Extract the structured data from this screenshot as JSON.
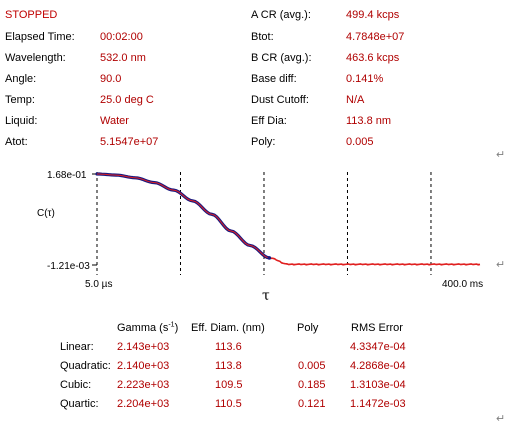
{
  "status": "STOPPED",
  "left_params": [
    {
      "label": "Elapsed Time:",
      "value": "00:02:00"
    },
    {
      "label": "Wavelength:",
      "value": "532.0 nm"
    },
    {
      "label": "Angle:",
      "value": "90.0"
    },
    {
      "label": "Temp:",
      "value": "25.0 deg C"
    },
    {
      "label": "Liquid:",
      "value": "Water"
    },
    {
      "label": "Atot:",
      "value": "5.1547e+07"
    }
  ],
  "right_params": [
    {
      "label": "A CR (avg.):",
      "value": "499.4 kcps"
    },
    {
      "label": "Btot:",
      "value": "4.7848e+07"
    },
    {
      "label": "B CR (avg.):",
      "value": "463.6 kcps"
    },
    {
      "label": "Base diff:",
      "value": "0.141%"
    },
    {
      "label": "Dust Cutoff:",
      "value": "N/A"
    },
    {
      "label": "Eff Dia:",
      "value": "113.8 nm"
    },
    {
      "label": "Poly:",
      "value": "0.005"
    }
  ],
  "paragraph_mark": "↵",
  "chart": {
    "ylabel": "C(τ)",
    "y_top_label": "1.68e-01",
    "y_bottom_label": "-1.21e-03",
    "x_left_label": "5.0 µs",
    "x_right_label": "400.0 ms",
    "xlabel": "τ",
    "colors": {
      "data": "#1a1a80",
      "fit": "#e02020",
      "axis": "#000000"
    }
  },
  "chart_data": {
    "type": "line",
    "title": "",
    "xlabel": "τ",
    "ylabel": "C(τ)",
    "xlim": [
      "5.0 µs",
      "400.0 ms"
    ],
    "ylim": [
      -0.00121,
      0.168
    ],
    "x_scale": "log",
    "grid": "vertical dashed lines",
    "series": [
      {
        "name": "",
        "x_frac": [
          0,
          0.05,
          0.1,
          0.15,
          0.2,
          0.25,
          0.3,
          0.35,
          0.4,
          0.45,
          0.5,
          0.6,
          0.7,
          0.8,
          0.9,
          1.0
        ],
        "values": [
          0.168,
          0.166,
          0.161,
          0.152,
          0.138,
          0.118,
          0.093,
          0.062,
          0.035,
          0.012,
          0.0,
          0.0,
          0.0,
          0.0,
          0.0,
          0.0
        ]
      }
    ]
  },
  "fits": {
    "headers": {
      "gamma": "Gamma (s",
      "gamma_sup": "-1",
      "gamma_end": ")",
      "diam": "Eff. Diam. (nm)",
      "poly": "Poly",
      "rms": "RMS Error"
    },
    "rows": [
      {
        "name": "Linear:",
        "gamma": "2.143e+03",
        "diam": "113.6",
        "poly": "",
        "rms": "4.3347e-04"
      },
      {
        "name": "Quadratic:",
        "gamma": "2.140e+03",
        "diam": "113.8",
        "poly": "0.005",
        "rms": "4.2868e-04"
      },
      {
        "name": "Cubic:",
        "gamma": "2.223e+03",
        "diam": "109.5",
        "poly": "0.185",
        "rms": "1.3103e-04"
      },
      {
        "name": "Quartic:",
        "gamma": "2.204e+03",
        "diam": "110.5",
        "poly": "0.121",
        "rms": "1.1472e-03"
      }
    ]
  }
}
